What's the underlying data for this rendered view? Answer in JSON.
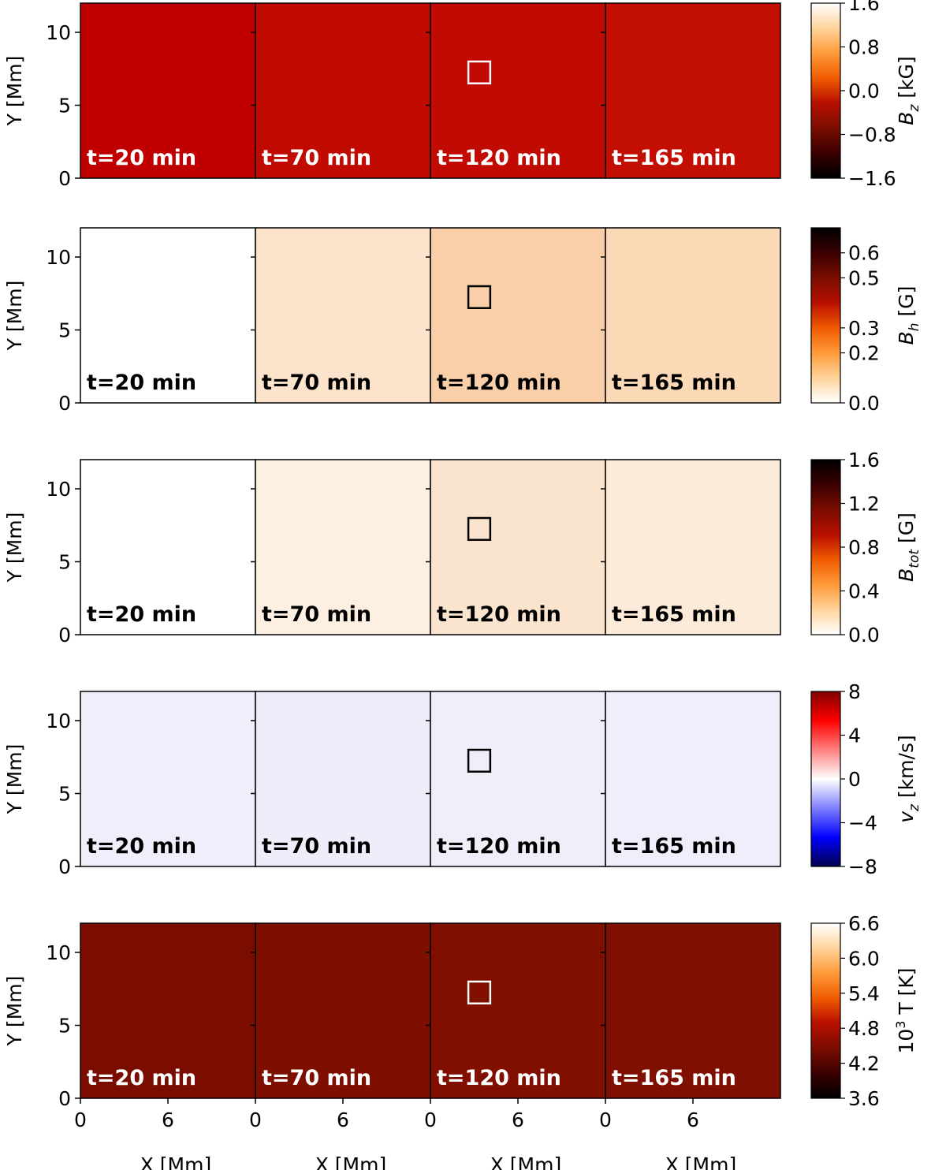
{
  "chart_data": {
    "type": "heatmap",
    "title": "",
    "time_labels": [
      "t=20 min",
      "t=70 min",
      "t=120 min",
      "t=165 min"
    ],
    "xlabel": "X [Mm]",
    "ylabel": "Y [Mm]",
    "x_range": [
      0,
      12
    ],
    "y_range": [
      0,
      12
    ],
    "x_ticks": [
      "0",
      "6"
    ],
    "y_ticks": [
      "0",
      "5",
      "10"
    ],
    "box_region_mm": {
      "panel": "t=120 min",
      "x": [
        2.6,
        4.1
      ],
      "y": [
        6.5,
        8.0
      ]
    },
    "rows": [
      {
        "name": "Bz",
        "colorbar_label_main": "B",
        "colorbar_label_sub": "z",
        "colorbar_label_unit": " [kG]",
        "colormap": "gist_heat",
        "range": [
          -1.6,
          1.6
        ],
        "ticks": [
          "1.6",
          "0.8",
          "0.0",
          "−0.8",
          "−1.6"
        ],
        "tick_values": [
          1.6,
          0.8,
          0.0,
          -0.8,
          -1.6
        ],
        "label_color": "#ffffff",
        "box_color": "#ffffff",
        "panel_background": [
          "#c00000",
          "#c10a02",
          "#c10a02",
          "#c30f03"
        ]
      },
      {
        "name": "Bh",
        "colorbar_label_main": "B",
        "colorbar_label_sub": "h",
        "colorbar_label_unit": " [G]",
        "colormap": "gist_heat_r",
        "range": [
          0.0,
          0.7
        ],
        "ticks": [
          "0.6",
          "0.5",
          "0.3",
          "0.2",
          "0.0"
        ],
        "tick_values": [
          0.6,
          0.5,
          0.3,
          0.2,
          0.0
        ],
        "label_color": "#000000",
        "box_color": "#000000",
        "panel_background": [
          "#ffffff",
          "#fbe3cc",
          "#f8cfa8",
          "#f9d9b6"
        ]
      },
      {
        "name": "Btot",
        "colorbar_label_main": "B",
        "colorbar_label_sub": "tot",
        "colorbar_label_unit": " [G]",
        "colormap": "gist_heat_r",
        "range": [
          0.0,
          1.6
        ],
        "ticks": [
          "1.6",
          "1.2",
          "0.8",
          "0.4",
          "0.0"
        ],
        "tick_values": [
          1.6,
          1.2,
          0.8,
          0.4,
          0.0
        ],
        "label_color": "#000000",
        "box_color": "#000000",
        "panel_background": [
          "#ffffff",
          "#fdf0e3",
          "#fbe4cd",
          "#fcebd9"
        ]
      },
      {
        "name": "vz",
        "colorbar_label_main": "v",
        "colorbar_label_sub": "z",
        "colorbar_label_unit": " [km/s]",
        "colormap": "seismic_r",
        "range": [
          -8,
          8
        ],
        "ticks": [
          "8",
          "4",
          "0",
          "−4",
          "−8"
        ],
        "tick_values": [
          8,
          4,
          0,
          -4,
          -8
        ],
        "label_color": "#000000",
        "box_color": "#000000",
        "panel_background": [
          "#efeefa",
          "#eeeefa",
          "#efeef9",
          "#eeeffa"
        ]
      },
      {
        "name": "T",
        "colorbar_label_main": "10",
        "colorbar_label_sup": "3",
        "colorbar_label_unit": " T [K]",
        "colormap": "gist_heat",
        "range": [
          3.6,
          6.6
        ],
        "ticks": [
          "6.6",
          "6.0",
          "5.4",
          "4.8",
          "4.2",
          "3.6"
        ],
        "tick_values": [
          6.6,
          6.0,
          5.4,
          4.8,
          4.2,
          3.6
        ],
        "label_color": "#ffffff",
        "box_color": "#ffffff",
        "panel_background": [
          "#7a0d00",
          "#7d0e00",
          "#800f00",
          "#7f0f00"
        ]
      }
    ]
  }
}
